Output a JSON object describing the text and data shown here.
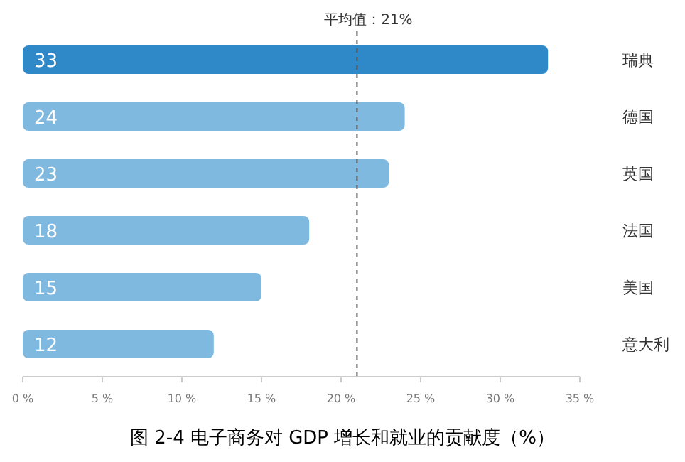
{
  "chart_data": {
    "type": "bar",
    "orientation": "horizontal",
    "title": "图 2-4 电子商务对 GDP 增长和就业的贡献度（%）",
    "categories": [
      "瑞典",
      "德国",
      "英国",
      "法国",
      "美国",
      "意大利"
    ],
    "values": [
      33,
      24,
      23,
      18,
      15,
      12
    ],
    "colors": [
      "#2f89c9",
      "#7fb9e0",
      "#7fb9e0",
      "#7fb9e0",
      "#7fb9e0",
      "#7fb9e0"
    ],
    "data_labels": true,
    "xlim": [
      0,
      35
    ],
    "xticks": [
      {
        "value": 0,
        "label": "0 %"
      },
      {
        "value": 5,
        "label": "5 %"
      },
      {
        "value": 10,
        "label": "10 %"
      },
      {
        "value": 15,
        "label": "15 %"
      },
      {
        "value": 20,
        "label": "20 %"
      },
      {
        "value": 25,
        "label": "25 %"
      },
      {
        "value": 30,
        "label": "30 %"
      },
      {
        "value": 35,
        "label": "35 %"
      }
    ],
    "ref_lines": [
      {
        "axis": "x",
        "value": 21,
        "label": "平均值：21%",
        "color": "#555555",
        "line_style": "dashed"
      }
    ],
    "grid": false
  }
}
